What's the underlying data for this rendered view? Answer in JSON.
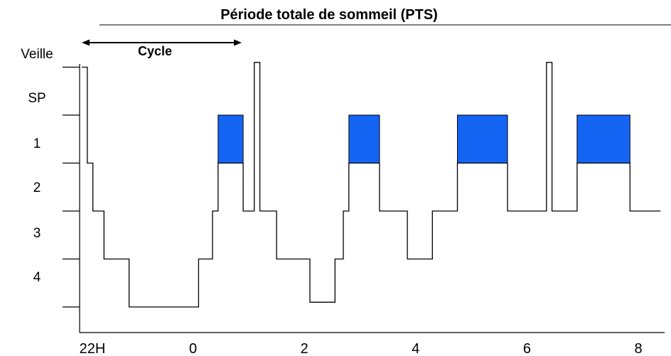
{
  "chart_data": {
    "type": "line",
    "title": "Période totale de sommeil (PTS)",
    "annotation": "Cycle",
    "stage_labels": [
      "Veille",
      "SP",
      "1",
      "2",
      "3",
      "4"
    ],
    "x_tick_labels": [
      "22H",
      "0",
      "2",
      "4",
      "6",
      "8"
    ],
    "x_ticks": [
      -2,
      0,
      2,
      4,
      6,
      8
    ],
    "xlim": [
      -2.05,
      8.55
    ],
    "cycle_span": [
      -2,
      0.9
    ],
    "hypnogram": [
      [
        -2.0,
        5
      ],
      [
        -1.9,
        5
      ],
      [
        -1.9,
        3
      ],
      [
        -1.8,
        3
      ],
      [
        -1.8,
        2
      ],
      [
        -1.6,
        2
      ],
      [
        -1.6,
        1
      ],
      [
        -1.15,
        1
      ],
      [
        -1.15,
        0
      ],
      [
        0.1,
        0
      ],
      [
        0.1,
        1
      ],
      [
        0.35,
        1
      ],
      [
        0.35,
        2
      ],
      [
        0.45,
        2
      ],
      [
        0.45,
        3
      ],
      [
        0.9,
        3
      ],
      [
        0.9,
        2
      ],
      [
        1.1,
        2
      ],
      [
        1.1,
        5.1
      ],
      [
        1.2,
        5.1
      ],
      [
        1.2,
        2
      ],
      [
        1.5,
        2
      ],
      [
        1.5,
        1
      ],
      [
        2.1,
        1
      ],
      [
        2.1,
        0.1
      ],
      [
        2.55,
        0.1
      ],
      [
        2.55,
        1
      ],
      [
        2.7,
        1
      ],
      [
        2.7,
        2
      ],
      [
        2.8,
        2
      ],
      [
        2.8,
        3
      ],
      [
        3.35,
        3
      ],
      [
        3.35,
        2
      ],
      [
        3.85,
        2
      ],
      [
        3.85,
        1
      ],
      [
        4.3,
        1
      ],
      [
        4.3,
        2
      ],
      [
        4.75,
        2
      ],
      [
        4.75,
        3
      ],
      [
        5.65,
        3
      ],
      [
        5.65,
        2
      ],
      [
        6.35,
        2
      ],
      [
        6.35,
        5.1
      ],
      [
        6.45,
        5.1
      ],
      [
        6.45,
        2
      ],
      [
        6.9,
        2
      ],
      [
        6.9,
        3
      ],
      [
        7.85,
        3
      ],
      [
        7.85,
        2
      ],
      [
        8.4,
        2
      ]
    ],
    "rem_periods": [
      [
        0.45,
        0.9
      ],
      [
        2.8,
        3.35
      ],
      [
        4.75,
        5.65
      ],
      [
        6.9,
        7.85
      ]
    ],
    "rem_color": "#1565f5",
    "line_color": "#000000"
  }
}
